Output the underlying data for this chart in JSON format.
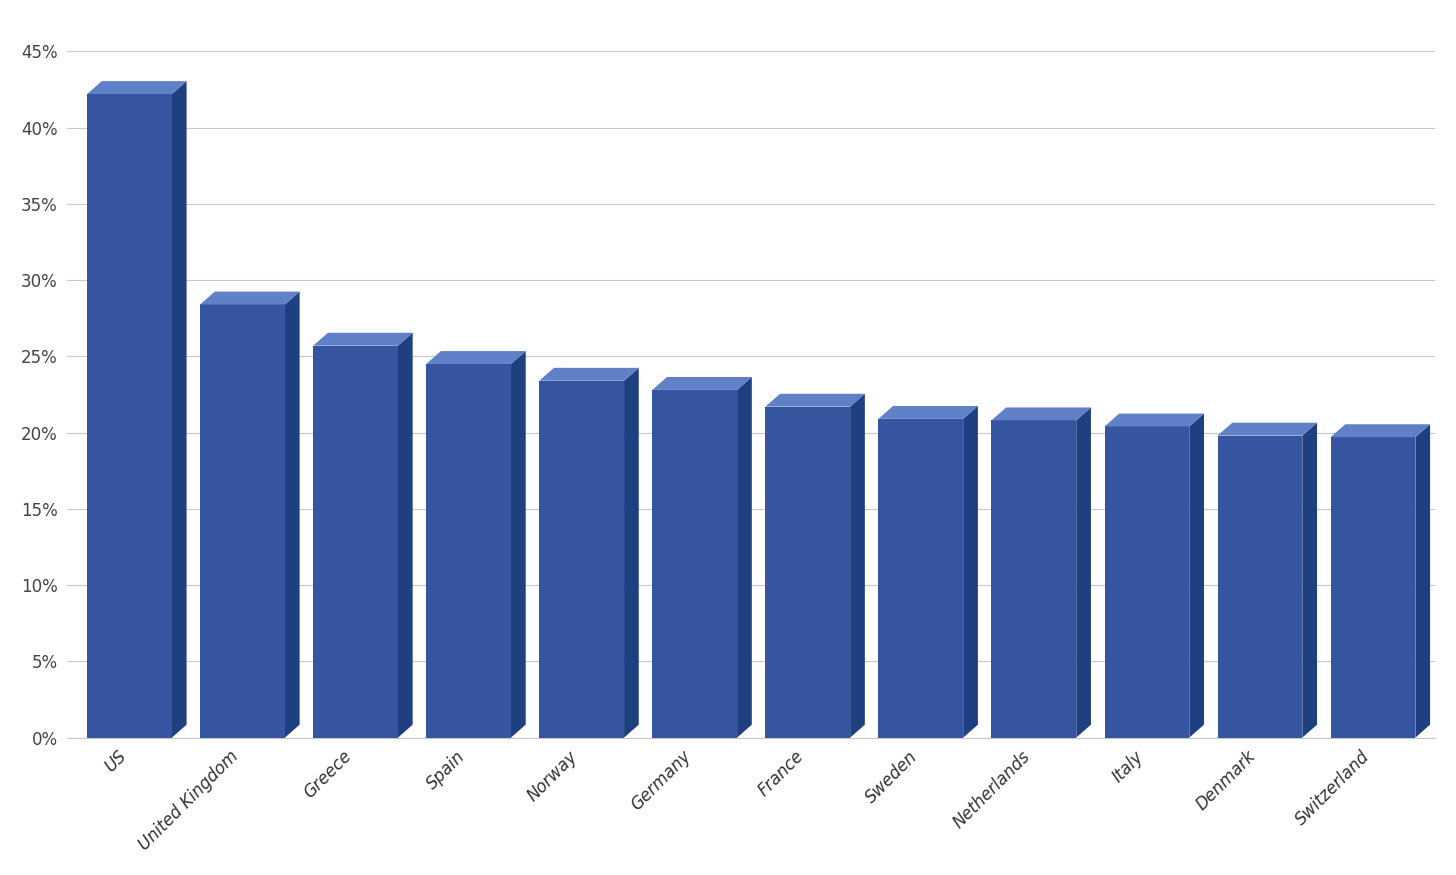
{
  "categories": [
    "US",
    "United Kingdom",
    "Greece",
    "Spain",
    "Norway",
    "Germany",
    "France",
    "Sweden",
    "Netherlands",
    "Italy",
    "Denmark",
    "Switzerland"
  ],
  "values": [
    0.422,
    0.284,
    0.257,
    0.245,
    0.234,
    0.228,
    0.217,
    0.209,
    0.208,
    0.204,
    0.198,
    0.197
  ],
  "bar_front_color": "#3555A0",
  "bar_side_color": "#1E3F80",
  "bar_top_color": "#6080C8",
  "title": "",
  "ylabel": "",
  "ylim": [
    0,
    0.47
  ],
  "ytick_values": [
    0.0,
    0.05,
    0.1,
    0.15,
    0.2,
    0.25,
    0.3,
    0.35,
    0.4,
    0.45
  ],
  "background_color": "#FFFFFF",
  "grid_color": "#C8C8C8",
  "label_fontsize": 12,
  "tick_fontsize": 12
}
